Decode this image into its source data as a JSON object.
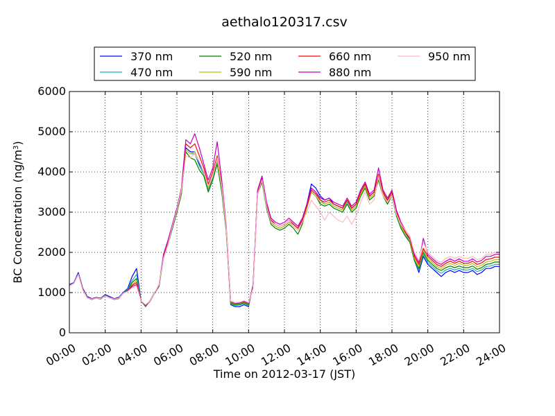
{
  "chart_data": {
    "type": "line",
    "title": "aethalo120317.csv",
    "xlabel": "Time on 2012-03-17 (JST)",
    "ylabel": "BC Concentration (ng/m",
    "ylabel_sup": "3",
    "ylabel_end": ")",
    "xlim": [
      0,
      24
    ],
    "ylim": [
      0,
      6000
    ],
    "x_tick_labels": [
      "00:00",
      "02:00",
      "04:00",
      "06:00",
      "08:00",
      "10:00",
      "12:00",
      "14:00",
      "16:00",
      "18:00",
      "20:00",
      "22:00",
      "24:00"
    ],
    "y_tick_labels": [
      "0",
      "1000",
      "2000",
      "3000",
      "4000",
      "5000",
      "6000"
    ],
    "grid": true,
    "legend_position": "top-center",
    "x_unit": "hour of day",
    "x": [
      0.0,
      0.25,
      0.5,
      0.75,
      1.0,
      1.25,
      1.5,
      1.75,
      2.0,
      2.25,
      2.5,
      2.75,
      3.0,
      3.25,
      3.5,
      3.75,
      4.0,
      4.25,
      4.5,
      4.75,
      5.0,
      5.25,
      5.5,
      5.75,
      6.0,
      6.25,
      6.5,
      6.75,
      7.0,
      7.25,
      7.5,
      7.75,
      8.0,
      8.25,
      8.5,
      8.75,
      9.0,
      9.25,
      9.5,
      9.75,
      10.0,
      10.25,
      10.5,
      10.75,
      11.0,
      11.25,
      11.5,
      11.75,
      12.0,
      12.25,
      12.5,
      12.75,
      13.0,
      13.25,
      13.5,
      13.75,
      14.0,
      14.25,
      14.5,
      14.75,
      15.0,
      15.25,
      15.5,
      15.75,
      16.0,
      16.25,
      16.5,
      16.75,
      17.0,
      17.25,
      17.5,
      17.75,
      18.0,
      18.25,
      18.5,
      18.75,
      19.0,
      19.25,
      19.5,
      19.75,
      20.0,
      20.25,
      20.5,
      20.75,
      21.0,
      21.25,
      21.5,
      21.75,
      22.0,
      22.25,
      22.5,
      22.75,
      23.0,
      23.25,
      23.5,
      23.75,
      24.0
    ],
    "series": [
      {
        "name": "370 nm",
        "color": "#0000ff",
        "values": [
          1200,
          1250,
          1500,
          1100,
          900,
          850,
          880,
          860,
          950,
          900,
          850,
          880,
          1000,
          1100,
          1400,
          1600,
          800,
          650,
          800,
          1000,
          1150,
          1900,
          2200,
          2600,
          3000,
          3500,
          4600,
          4500,
          4500,
          4200,
          4000,
          3600,
          3900,
          4300,
          3600,
          2600,
          700,
          650,
          650,
          700,
          650,
          1200,
          3500,
          3800,
          3200,
          2800,
          2700,
          2650,
          2700,
          2800,
          2700,
          2600,
          2800,
          3200,
          3700,
          3600,
          3400,
          3300,
          3350,
          3200,
          3150,
          3100,
          3300,
          3100,
          3200,
          3500,
          3700,
          3400,
          3500,
          3900,
          3500,
          3300,
          3500,
          3000,
          2700,
          2500,
          2300,
          1800,
          1500,
          1900,
          1700,
          1600,
          1500,
          1400,
          1500,
          1550,
          1500,
          1550,
          1500,
          1500,
          1550,
          1450,
          1500,
          1600,
          1600,
          1650,
          1650
        ]
      },
      {
        "name": "470 nm",
        "color": "#20b2aa",
        "values": [
          1180,
          1240,
          1470,
          1080,
          880,
          840,
          870,
          850,
          930,
          880,
          840,
          860,
          990,
          1080,
          1300,
          1450,
          790,
          660,
          790,
          990,
          1150,
          1850,
          2200,
          2600,
          3000,
          3450,
          4550,
          4450,
          4450,
          4150,
          3950,
          3550,
          3850,
          4250,
          3550,
          2550,
          720,
          680,
          690,
          730,
          680,
          1150,
          3450,
          3750,
          3150,
          2750,
          2650,
          2600,
          2650,
          2750,
          2650,
          2550,
          2750,
          3150,
          3600,
          3500,
          3300,
          3200,
          3250,
          3150,
          3100,
          3050,
          3250,
          3050,
          3150,
          3450,
          3650,
          3350,
          3450,
          3850,
          3450,
          3250,
          3450,
          2950,
          2650,
          2450,
          2250,
          1800,
          1550,
          1950,
          1750,
          1650,
          1550,
          1480,
          1560,
          1600,
          1560,
          1600,
          1560,
          1560,
          1600,
          1520,
          1560,
          1650,
          1660,
          1700,
          1700
        ]
      },
      {
        "name": "520 nm",
        "color": "#008000",
        "values": [
          1170,
          1230,
          1460,
          1070,
          870,
          830,
          860,
          840,
          920,
          870,
          830,
          850,
          980,
          1060,
          1250,
          1350,
          780,
          670,
          780,
          980,
          1160,
          1850,
          2200,
          2600,
          3000,
          3450,
          4500,
          4350,
          4300,
          4050,
          3900,
          3500,
          3800,
          4200,
          3500,
          2550,
          740,
          700,
          710,
          750,
          700,
          1150,
          3450,
          3750,
          3100,
          2700,
          2600,
          2550,
          2600,
          2700,
          2600,
          2450,
          2700,
          3100,
          3500,
          3400,
          3200,
          3150,
          3200,
          3100,
          3050,
          3000,
          3200,
          3000,
          3100,
          3400,
          3600,
          3300,
          3400,
          3800,
          3400,
          3200,
          3400,
          2900,
          2600,
          2400,
          2250,
          1800,
          1600,
          2000,
          1800,
          1700,
          1600,
          1550,
          1620,
          1660,
          1620,
          1660,
          1620,
          1620,
          1660,
          1580,
          1620,
          1700,
          1720,
          1760,
          1760
        ]
      },
      {
        "name": "590 nm",
        "color": "#bcbd22",
        "values": [
          1170,
          1230,
          1460,
          1070,
          870,
          840,
          860,
          850,
          920,
          870,
          840,
          860,
          980,
          1050,
          1200,
          1300,
          790,
          680,
          790,
          990,
          1170,
          1900,
          2250,
          2650,
          3050,
          3500,
          4550,
          4450,
          4500,
          4250,
          4000,
          3600,
          3900,
          4300,
          3600,
          2600,
          760,
          720,
          730,
          770,
          720,
          1150,
          3500,
          3800,
          3150,
          2750,
          2650,
          2600,
          2650,
          2750,
          2650,
          2550,
          2750,
          3100,
          3500,
          3400,
          3250,
          3200,
          3250,
          3150,
          3100,
          3050,
          3300,
          3050,
          3150,
          3450,
          3650,
          3350,
          3450,
          3850,
          3450,
          3250,
          3450,
          2950,
          2650,
          2450,
          2300,
          1850,
          1650,
          2050,
          1850,
          1750,
          1650,
          1600,
          1680,
          1720,
          1680,
          1720,
          1680,
          1680,
          1720,
          1640,
          1680,
          1760,
          1780,
          1820,
          1820
        ]
      },
      {
        "name": "660 nm",
        "color": "#ff0000",
        "values": [
          1170,
          1230,
          1460,
          1070,
          870,
          840,
          860,
          850,
          920,
          870,
          840,
          860,
          980,
          1050,
          1180,
          1250,
          790,
          680,
          790,
          990,
          1180,
          1900,
          2250,
          2650,
          3050,
          3550,
          4700,
          4600,
          4700,
          4400,
          4100,
          3700,
          4000,
          4400,
          3700,
          2650,
          770,
          730,
          740,
          780,
          730,
          1150,
          3500,
          3850,
          3200,
          2800,
          2700,
          2650,
          2700,
          2800,
          2700,
          2600,
          2800,
          3150,
          3550,
          3450,
          3300,
          3250,
          3300,
          3200,
          3150,
          3100,
          3300,
          3100,
          3200,
          3500,
          3700,
          3400,
          3500,
          3950,
          3500,
          3300,
          3500,
          3000,
          2700,
          2500,
          2350,
          1900,
          1700,
          2100,
          1900,
          1800,
          1700,
          1650,
          1730,
          1780,
          1730,
          1780,
          1730,
          1730,
          1780,
          1700,
          1740,
          1820,
          1840,
          1880,
          1880
        ]
      },
      {
        "name": "880 nm",
        "color": "#c000c0",
        "values": [
          1170,
          1230,
          1460,
          1070,
          870,
          840,
          860,
          850,
          920,
          870,
          840,
          860,
          980,
          1040,
          1150,
          1200,
          790,
          690,
          790,
          990,
          1190,
          1950,
          2300,
          2700,
          3100,
          3600,
          4800,
          4700,
          4950,
          4600,
          4200,
          3800,
          4100,
          4750,
          3800,
          2700,
          780,
          740,
          750,
          790,
          740,
          1150,
          3550,
          3900,
          3250,
          2850,
          2750,
          2700,
          2750,
          2850,
          2750,
          2650,
          2850,
          3200,
          3600,
          3500,
          3350,
          3300,
          3350,
          3250,
          3200,
          3150,
          3350,
          3150,
          3250,
          3550,
          3750,
          3450,
          3550,
          4100,
          3550,
          3350,
          3550,
          3050,
          2750,
          2550,
          2400,
          1950,
          1750,
          2350,
          1950,
          1850,
          1750,
          1700,
          1780,
          1840,
          1780,
          1840,
          1780,
          1780,
          1840,
          1760,
          1800,
          1900,
          1900,
          1950,
          1950
        ]
      },
      {
        "name": "950 nm",
        "color": "#ffb6c1",
        "values": [
          1170,
          1230,
          1450,
          1060,
          870,
          840,
          860,
          850,
          920,
          870,
          840,
          860,
          980,
          1030,
          1120,
          1150,
          790,
          700,
          790,
          990,
          1200,
          1850,
          2200,
          2650,
          3050,
          3550,
          4400,
          4350,
          4450,
          4250,
          4000,
          3650,
          3900,
          4350,
          3650,
          2650,
          790,
          750,
          760,
          800,
          750,
          1100,
          3450,
          3800,
          3150,
          2750,
          2700,
          2650,
          2700,
          2800,
          2650,
          2550,
          2750,
          3000,
          3300,
          3150,
          3000,
          2800,
          3000,
          2900,
          2800,
          2750,
          2900,
          2700,
          2900,
          3250,
          3500,
          3200,
          3300,
          3900,
          3400,
          3250,
          3400,
          2950,
          2700,
          2550,
          2400,
          2000,
          1800,
          2250,
          2000,
          1900,
          1800,
          1750,
          1850,
          1900,
          1850,
          1900,
          1850,
          1850,
          1900,
          1820,
          1850,
          1950,
          1950,
          2000,
          2000
        ]
      }
    ]
  }
}
